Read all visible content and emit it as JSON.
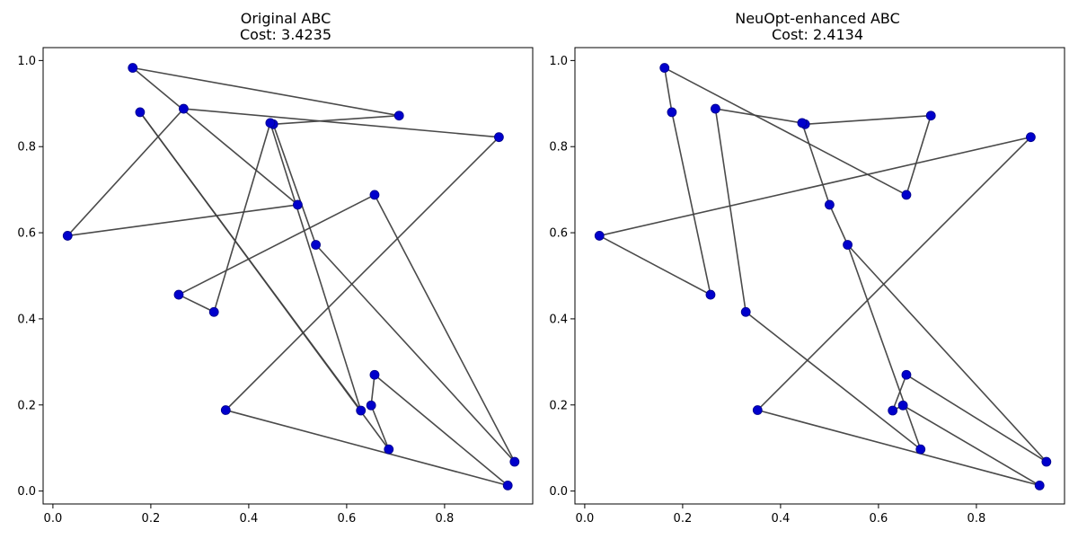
{
  "chart_data": [
    {
      "type": "line",
      "title": "Original ABC",
      "subtitle": "Cost: 3.4235",
      "xlabel": "",
      "ylabel": "",
      "xlim": [
        -0.02,
        0.98
      ],
      "ylim": [
        -0.03,
        1.03
      ],
      "xticks": [
        "0.0",
        "0.2",
        "0.4",
        "0.6",
        "0.8"
      ],
      "yticks": [
        "0.0",
        "0.2",
        "0.4",
        "0.6",
        "0.8",
        "1.0"
      ],
      "grid": false,
      "line_color": "#404040",
      "marker_color": "#0000cc",
      "route": [
        [
          0.163,
          0.983
        ],
        [
          0.707,
          0.872
        ],
        [
          0.45,
          0.852
        ],
        [
          0.537,
          0.572
        ],
        [
          0.943,
          0.068
        ],
        [
          0.657,
          0.688
        ],
        [
          0.257,
          0.456
        ],
        [
          0.329,
          0.416
        ],
        [
          0.444,
          0.855
        ],
        [
          0.629,
          0.187
        ],
        [
          0.178,
          0.88
        ],
        [
          0.686,
          0.097
        ],
        [
          0.65,
          0.199
        ],
        [
          0.657,
          0.27
        ],
        [
          0.929,
          0.013
        ],
        [
          0.353,
          0.188
        ],
        [
          0.911,
          0.822
        ],
        [
          0.267,
          0.888
        ],
        [
          0.03,
          0.593
        ],
        [
          0.5,
          0.665
        ],
        [
          0.163,
          0.983
        ]
      ]
    },
    {
      "type": "line",
      "title": "NeuOpt-enhanced ABC",
      "subtitle": "Cost: 2.4134",
      "xlabel": "",
      "ylabel": "",
      "xlim": [
        -0.02,
        0.98
      ],
      "ylim": [
        -0.03,
        1.03
      ],
      "xticks": [
        "0.0",
        "0.2",
        "0.4",
        "0.6",
        "0.8"
      ],
      "yticks": [
        "0.0",
        "0.2",
        "0.4",
        "0.6",
        "0.8",
        "1.0"
      ],
      "grid": false,
      "line_color": "#404040",
      "marker_color": "#0000cc",
      "route": [
        [
          0.163,
          0.983
        ],
        [
          0.657,
          0.688
        ],
        [
          0.707,
          0.872
        ],
        [
          0.45,
          0.852
        ],
        [
          0.444,
          0.855
        ],
        [
          0.5,
          0.665
        ],
        [
          0.537,
          0.572
        ],
        [
          0.943,
          0.068
        ],
        [
          0.657,
          0.27
        ],
        [
          0.629,
          0.187
        ],
        [
          0.65,
          0.199
        ],
        [
          0.929,
          0.013
        ],
        [
          0.353,
          0.188
        ],
        [
          0.911,
          0.822
        ],
        [
          0.03,
          0.593
        ],
        [
          0.257,
          0.456
        ],
        [
          0.178,
          0.88
        ],
        [
          0.163,
          0.983
        ]
      ],
      "extra_segments": [
        [
          [
            0.267,
            0.888
          ],
          [
            0.329,
            0.416
          ]
        ],
        [
          [
            0.329,
            0.416
          ],
          [
            0.686,
            0.097
          ]
        ],
        [
          [
            0.686,
            0.097
          ],
          [
            0.537,
            0.572
          ]
        ],
        [
          [
            0.267,
            0.888
          ],
          [
            0.444,
            0.855
          ]
        ]
      ]
    }
  ]
}
